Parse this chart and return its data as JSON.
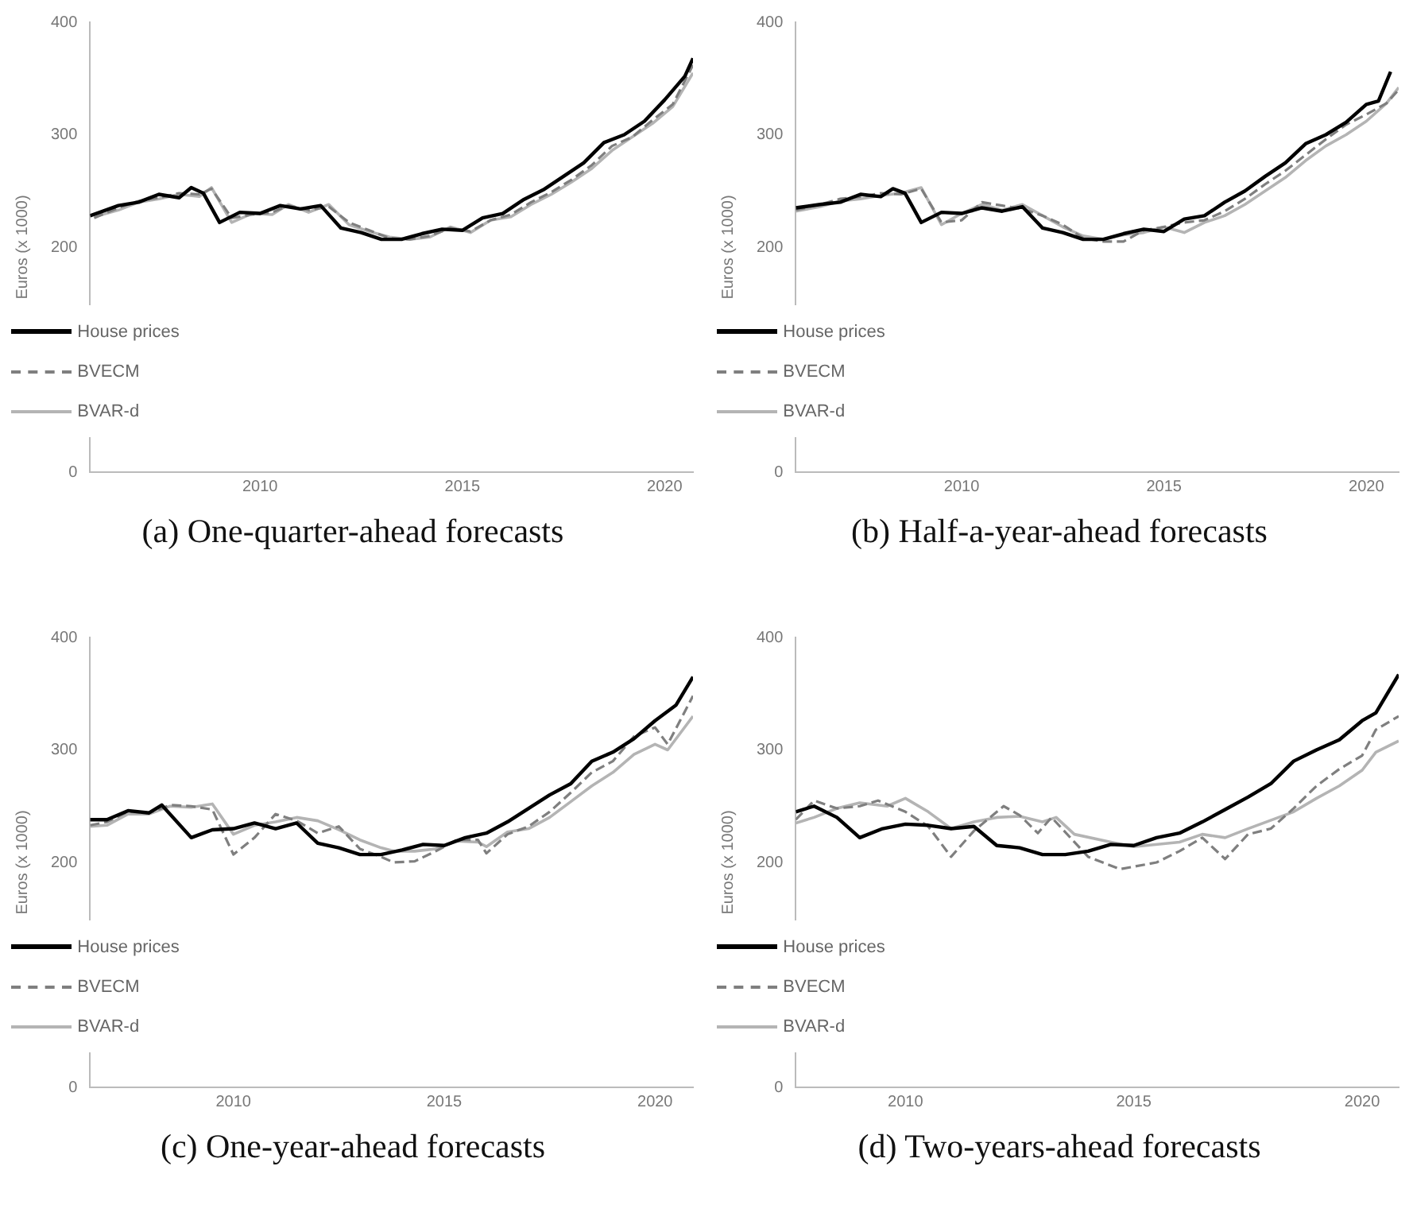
{
  "chart_data": [
    {
      "type": "line",
      "title": "(a) One-quarter-ahead forecasts",
      "ylabel": "Euros (x 1000)",
      "xlim": [
        2005.8,
        2020.7
      ],
      "xticks": [
        2010,
        2015,
        2020
      ],
      "ylim": [
        0,
        400
      ],
      "yticks": [
        0,
        200,
        300,
        400
      ],
      "legend": "bottom left",
      "series": [
        {
          "name": "House prices",
          "color": "#000000",
          "line_style": "solid",
          "x": [
            2005.8,
            2006.5,
            2007,
            2007.5,
            2008,
            2008.3,
            2008.6,
            2009,
            2009.5,
            2010,
            2010.5,
            2011,
            2011.5,
            2012,
            2012.5,
            2013,
            2013.5,
            2014,
            2014.5,
            2015,
            2015.5,
            2016,
            2016.5,
            2017,
            2017.5,
            2018,
            2018.5,
            2019,
            2019.5,
            2020,
            2020.5,
            2020.7
          ],
          "values": [
            228,
            237,
            240,
            247,
            244,
            253,
            248,
            222,
            231,
            230,
            237,
            234,
            237,
            217,
            213,
            207,
            207,
            212,
            216,
            215,
            226,
            230,
            242,
            251,
            263,
            275,
            293,
            300,
            312,
            331,
            352,
            368
          ]
        },
        {
          "name": "BVECM",
          "color": "#7f7f7f",
          "line_style": "dashed",
          "x": [
            2005.9,
            2006.5,
            2007,
            2007.5,
            2008,
            2008.5,
            2008.8,
            2009.3,
            2009.8,
            2010.3,
            2010.7,
            2011.2,
            2011.7,
            2012.2,
            2012.7,
            2013.2,
            2013.7,
            2014.2,
            2014.7,
            2015.2,
            2015.7,
            2016.2,
            2016.7,
            2017.2,
            2017.7,
            2018.2,
            2018.7,
            2019.2,
            2019.7,
            2020.2,
            2020.7
          ],
          "values": [
            226,
            235,
            241,
            244,
            248,
            247,
            252,
            226,
            229,
            231,
            237,
            233,
            236,
            222,
            215,
            208,
            207,
            210,
            217,
            214,
            224,
            229,
            240,
            249,
            260,
            273,
            290,
            298,
            313,
            327,
            362
          ]
        },
        {
          "name": "BVAR-d",
          "color": "#b4b4b4",
          "line_style": "solid",
          "x": [
            2005.9,
            2006.5,
            2007,
            2007.5,
            2008,
            2008.5,
            2008.8,
            2009.3,
            2009.8,
            2010.3,
            2010.7,
            2011.2,
            2011.7,
            2012.2,
            2012.7,
            2013.2,
            2013.7,
            2014.2,
            2014.7,
            2015.2,
            2015.7,
            2016.2,
            2016.7,
            2017.2,
            2017.7,
            2018.2,
            2018.7,
            2019.2,
            2019.7,
            2020.2,
            2020.7
          ],
          "values": [
            227,
            233,
            240,
            243,
            247,
            245,
            253,
            222,
            230,
            229,
            238,
            231,
            238,
            220,
            214,
            209,
            207,
            209,
            218,
            213,
            224,
            227,
            238,
            247,
            258,
            270,
            286,
            298,
            310,
            325,
            355
          ]
        }
      ]
    },
    {
      "type": "line",
      "title": "(b) Half-a-year-ahead forecasts",
      "ylabel": "Euros (x 1000)",
      "xlim": [
        2005.9,
        2020.8
      ],
      "xticks": [
        2010,
        2015,
        2020
      ],
      "ylim": [
        0,
        400
      ],
      "yticks": [
        0,
        200,
        300,
        400
      ],
      "legend": "bottom left",
      "series": [
        {
          "name": "House prices",
          "color": "#000000",
          "line_style": "solid",
          "x": [
            2005.9,
            2006.5,
            2007,
            2007.5,
            2008,
            2008.3,
            2008.6,
            2009,
            2009.5,
            2010,
            2010.5,
            2011,
            2011.5,
            2012,
            2012.5,
            2013,
            2013.5,
            2014,
            2014.5,
            2015,
            2015.5,
            2016,
            2016.5,
            2017,
            2017.5,
            2018,
            2018.5,
            2019,
            2019.5,
            2020,
            2020.3,
            2020.6
          ],
          "values": [
            235,
            238,
            240,
            247,
            245,
            252,
            248,
            222,
            231,
            230,
            235,
            232,
            236,
            217,
            213,
            207,
            207,
            212,
            216,
            214,
            225,
            228,
            240,
            250,
            263,
            275,
            292,
            300,
            311,
            327,
            330,
            356
          ]
        },
        {
          "name": "BVECM",
          "color": "#7f7f7f",
          "line_style": "dashed",
          "x": [
            2005.9,
            2006.5,
            2007,
            2007.5,
            2008,
            2008.5,
            2009,
            2009.5,
            2010,
            2010.5,
            2011,
            2011.5,
            2012,
            2012.5,
            2013,
            2013.5,
            2014,
            2014.5,
            2015,
            2015.5,
            2016,
            2016.5,
            2017,
            2017.5,
            2018,
            2018.5,
            2019,
            2019.5,
            2020,
            2020.5,
            2020.8
          ],
          "values": [
            233,
            238,
            243,
            245,
            248,
            247,
            252,
            222,
            224,
            240,
            237,
            234,
            228,
            220,
            208,
            205,
            205,
            215,
            218,
            222,
            224,
            232,
            243,
            256,
            268,
            282,
            296,
            309,
            318,
            328,
            340
          ]
        },
        {
          "name": "BVAR-d",
          "color": "#b4b4b4",
          "line_style": "solid",
          "x": [
            2005.9,
            2006.5,
            2007,
            2007.5,
            2008,
            2008.5,
            2009,
            2009.5,
            2010,
            2010.5,
            2011,
            2011.5,
            2012,
            2012.5,
            2013,
            2013.5,
            2014,
            2014.5,
            2015,
            2015.5,
            2016,
            2016.5,
            2017,
            2017.5,
            2018,
            2018.5,
            2019,
            2019.5,
            2020,
            2020.5,
            2020.8
          ],
          "values": [
            232,
            236,
            241,
            243,
            246,
            248,
            253,
            220,
            230,
            238,
            233,
            238,
            228,
            218,
            210,
            207,
            211,
            213,
            218,
            213,
            222,
            228,
            238,
            250,
            262,
            277,
            290,
            300,
            312,
            328,
            342
          ]
        }
      ]
    },
    {
      "type": "line",
      "title": "(c) One-year-ahead forecasts",
      "ylabel": "Euros (x 1000)",
      "xlim": [
        2006.6,
        2020.9
      ],
      "xticks": [
        2010,
        2015,
        2020
      ],
      "ylim": [
        0,
        400
      ],
      "yticks": [
        0,
        200,
        300,
        400
      ],
      "legend": "bottom left",
      "series": [
        {
          "name": "House prices",
          "color": "#000000",
          "line_style": "solid",
          "x": [
            2006.6,
            2007,
            2007.5,
            2008,
            2008.3,
            2009,
            2009.5,
            2010,
            2010.5,
            2011,
            2011.5,
            2012,
            2012.5,
            2013,
            2013.5,
            2014,
            2014.5,
            2015,
            2015.5,
            2016,
            2016.5,
            2017,
            2017.5,
            2018,
            2018.5,
            2019,
            2019.5,
            2020,
            2020.5,
            2020.9
          ],
          "values": [
            238,
            238,
            246,
            244,
            251,
            222,
            229,
            230,
            235,
            230,
            235,
            217,
            213,
            207,
            207,
            211,
            216,
            215,
            222,
            226,
            236,
            248,
            260,
            270,
            290,
            298,
            310,
            326,
            340,
            365
          ]
        },
        {
          "name": "BVECM",
          "color": "#7f7f7f",
          "line_style": "dashed",
          "x": [
            2006.6,
            2007,
            2007.5,
            2008,
            2008.5,
            2009,
            2009.5,
            2010,
            2010.5,
            2011,
            2011.5,
            2012,
            2012.5,
            2013,
            2013.5,
            2013.8,
            2014.3,
            2014.8,
            2015.3,
            2015.8,
            2016,
            2016.5,
            2017,
            2017.5,
            2018,
            2018.5,
            2019,
            2019.5,
            2020,
            2020.3,
            2020.9
          ],
          "values": [
            233,
            236,
            245,
            244,
            251,
            250,
            247,
            207,
            222,
            243,
            237,
            226,
            232,
            212,
            205,
            200,
            201,
            210,
            220,
            220,
            208,
            225,
            232,
            245,
            262,
            280,
            290,
            312,
            320,
            305,
            348
          ]
        },
        {
          "name": "BVAR-d",
          "color": "#b4b4b4",
          "line_style": "solid",
          "x": [
            2006.6,
            2007,
            2007.5,
            2008,
            2008.5,
            2009,
            2009.5,
            2010,
            2010.5,
            2011,
            2011.5,
            2012,
            2012.5,
            2013,
            2013.5,
            2013.8,
            2014.3,
            2014.8,
            2015.3,
            2015.8,
            2016,
            2016.5,
            2017,
            2017.5,
            2018,
            2018.5,
            2019,
            2019.5,
            2020,
            2020.3,
            2020.9
          ],
          "values": [
            232,
            233,
            243,
            243,
            250,
            249,
            252,
            225,
            233,
            236,
            240,
            237,
            229,
            220,
            213,
            210,
            210,
            212,
            219,
            218,
            214,
            227,
            230,
            240,
            254,
            268,
            280,
            296,
            305,
            300,
            330
          ]
        }
      ]
    },
    {
      "type": "line",
      "title": "(d) Two-years-ahead forecasts",
      "ylabel": "Euros (x 1000)",
      "xlim": [
        2007.6,
        2020.8
      ],
      "xticks": [
        2010,
        2015,
        2020
      ],
      "ylim": [
        0,
        400
      ],
      "yticks": [
        0,
        200,
        300,
        400
      ],
      "legend": "bottom left",
      "series": [
        {
          "name": "House prices",
          "color": "#000000",
          "line_style": "solid",
          "x": [
            2007.6,
            2008,
            2008.5,
            2009,
            2009.5,
            2010,
            2010.5,
            2011,
            2011.5,
            2012,
            2012.5,
            2013,
            2013.5,
            2014,
            2014.5,
            2015,
            2015.5,
            2016,
            2016.5,
            2017,
            2017.5,
            2018,
            2018.5,
            2019,
            2019.5,
            2020,
            2020.3,
            2020.8
          ],
          "values": [
            245,
            250,
            240,
            222,
            230,
            234,
            233,
            230,
            232,
            215,
            213,
            207,
            207,
            210,
            216,
            215,
            222,
            226,
            236,
            247,
            258,
            270,
            290,
            300,
            309,
            326,
            333,
            367
          ]
        },
        {
          "name": "BVECM",
          "color": "#7f7f7f",
          "line_style": "dashed",
          "x": [
            2007.6,
            2008,
            2008.5,
            2009,
            2009.4,
            2010,
            2010.5,
            2011,
            2011.5,
            2012.15,
            2012.5,
            2012.9,
            2013.2,
            2014,
            2014.7,
            2015.5,
            2016,
            2016.5,
            2017,
            2017.5,
            2018,
            2018.5,
            2019,
            2019.5,
            2020,
            2020.3,
            2020.8
          ],
          "values": [
            238,
            255,
            248,
            250,
            255,
            245,
            232,
            205,
            228,
            250,
            242,
            226,
            240,
            205,
            194,
            200,
            210,
            222,
            203,
            225,
            230,
            248,
            268,
            283,
            295,
            318,
            330
          ]
        },
        {
          "name": "BVAR-d",
          "color": "#b4b4b4",
          "line_style": "solid",
          "x": [
            2007.6,
            2008,
            2008.5,
            2009,
            2009.6,
            2010,
            2010.5,
            2011,
            2011.5,
            2012,
            2012.5,
            2013,
            2013.3,
            2013.7,
            2014.5,
            2015,
            2016,
            2016.5,
            2017,
            2017.5,
            2018.5,
            2019,
            2019.5,
            2020,
            2020.3,
            2020.8
          ],
          "values": [
            235,
            240,
            248,
            253,
            250,
            257,
            245,
            230,
            236,
            240,
            241,
            236,
            240,
            225,
            218,
            214,
            218,
            225,
            222,
            230,
            245,
            257,
            268,
            282,
            298,
            308
          ]
        }
      ]
    }
  ]
}
